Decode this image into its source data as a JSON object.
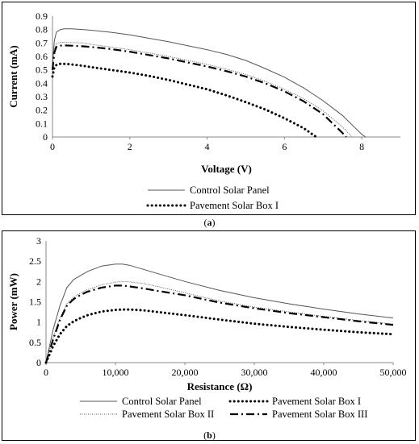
{
  "chart_data": [
    {
      "type": "line",
      "caption": "a",
      "xlabel": "Voltage (V)",
      "ylabel": "Current (mA)",
      "xlim": [
        0,
        9
      ],
      "ylim": [
        0,
        0.9
      ],
      "xticks": [
        "0",
        "2",
        "4",
        "6",
        "8"
      ],
      "yticks": [
        "0",
        "0.1",
        "0.2",
        "0.3",
        "0.4",
        "0.5",
        "0.6",
        "0.7",
        "0.8",
        "0.9"
      ],
      "grid": false,
      "legend_position": "bottom",
      "series": [
        {
          "name": "Control Solar Panel",
          "style": "solid-thin",
          "x": [
            0,
            0.05,
            0.1,
            0.2,
            0.3,
            0.5,
            0.8,
            1,
            1.5,
            2,
            2.5,
            3,
            3.5,
            4,
            4.5,
            5,
            5.5,
            6,
            6.5,
            7,
            7.5,
            8,
            8.1
          ],
          "y": [
            0.55,
            0.72,
            0.78,
            0.8,
            0.805,
            0.806,
            0.8,
            0.795,
            0.78,
            0.76,
            0.735,
            0.71,
            0.68,
            0.65,
            0.615,
            0.57,
            0.51,
            0.445,
            0.365,
            0.27,
            0.16,
            0.02,
            0
          ]
        },
        {
          "name": "Pavement Solar Box I",
          "style": "dotted-thick",
          "x": [
            0,
            0.05,
            0.1,
            0.2,
            0.3,
            0.5,
            0.8,
            1,
            1.5,
            2,
            2.5,
            3,
            3.5,
            4,
            4.5,
            5,
            5.5,
            6,
            6.5,
            6.8,
            6.85
          ],
          "y": [
            0.45,
            0.52,
            0.535,
            0.545,
            0.545,
            0.54,
            0.53,
            0.52,
            0.5,
            0.48,
            0.455,
            0.425,
            0.39,
            0.355,
            0.31,
            0.26,
            0.205,
            0.14,
            0.065,
            0.005,
            0
          ]
        },
        {
          "name": "Pavement Solar Box II",
          "style": "dotted-thin",
          "x": [
            0,
            0.05,
            0.1,
            0.2,
            0.3,
            0.5,
            0.8,
            1,
            1.5,
            2,
            2.5,
            3,
            3.5,
            4,
            4.5,
            5,
            5.5,
            6,
            6.5,
            7,
            7.5,
            7.75
          ],
          "y": [
            0.52,
            0.66,
            0.695,
            0.705,
            0.705,
            0.703,
            0.7,
            0.69,
            0.67,
            0.65,
            0.625,
            0.6,
            0.57,
            0.54,
            0.505,
            0.465,
            0.415,
            0.355,
            0.285,
            0.195,
            0.075,
            0
          ]
        },
        {
          "name": "Pavement Solar Box III",
          "style": "dashdot-thick",
          "x": [
            0,
            0.05,
            0.1,
            0.2,
            0.3,
            0.5,
            0.8,
            1,
            1.5,
            2,
            2.5,
            3,
            3.5,
            4,
            4.5,
            5,
            5.5,
            6,
            6.5,
            7,
            7.5,
            7.6
          ],
          "y": [
            0.5,
            0.63,
            0.67,
            0.68,
            0.682,
            0.68,
            0.675,
            0.67,
            0.655,
            0.635,
            0.61,
            0.585,
            0.555,
            0.525,
            0.49,
            0.45,
            0.4,
            0.34,
            0.265,
            0.17,
            0.03,
            0
          ]
        }
      ],
      "legend_entries": [
        "Control Solar Panel",
        "Pavement Solar Box I"
      ]
    },
    {
      "type": "line",
      "caption": "b",
      "xlabel": "Resistance (Ω)",
      "ylabel": "Power (mW)",
      "xlim": [
        0,
        50000
      ],
      "ylim": [
        0,
        3
      ],
      "xticks": [
        "0",
        "10,000",
        "20,000",
        "30,000",
        "40,000",
        "50,000"
      ],
      "yticks": [
        "0",
        "0.5",
        "1",
        "1.5",
        "2",
        "2.5",
        "3"
      ],
      "grid": false,
      "legend_position": "bottom",
      "series": [
        {
          "name": "Control Solar Panel",
          "style": "solid-thin",
          "x": [
            0,
            500,
            1000,
            2000,
            3000,
            4000,
            5000,
            6000,
            8000,
            10000,
            11000,
            12000,
            14000,
            16000,
            20000,
            25000,
            30000,
            35000,
            40000,
            45000,
            50000
          ],
          "y": [
            0,
            0.4,
            0.8,
            1.4,
            1.85,
            2.05,
            2.15,
            2.25,
            2.38,
            2.43,
            2.43,
            2.4,
            2.3,
            2.2,
            2.0,
            1.78,
            1.6,
            1.45,
            1.32,
            1.2,
            1.1
          ]
        },
        {
          "name": "Pavement Solar Box I",
          "style": "dotted-thick",
          "x": [
            0,
            500,
            1000,
            2000,
            3000,
            4000,
            5000,
            6000,
            8000,
            10000,
            11000,
            12000,
            14000,
            16000,
            20000,
            25000,
            30000,
            35000,
            40000,
            45000,
            50000
          ],
          "y": [
            0,
            0.2,
            0.4,
            0.7,
            0.9,
            1.02,
            1.1,
            1.17,
            1.26,
            1.3,
            1.31,
            1.31,
            1.29,
            1.25,
            1.17,
            1.06,
            0.96,
            0.88,
            0.81,
            0.75,
            0.7
          ]
        },
        {
          "name": "Pavement Solar Box II",
          "style": "dotted-thin",
          "x": [
            0,
            500,
            1000,
            2000,
            3000,
            4000,
            5000,
            6000,
            8000,
            10000,
            11000,
            12000,
            14000,
            16000,
            20000,
            25000,
            30000,
            35000,
            40000,
            45000,
            50000
          ],
          "y": [
            0,
            0.3,
            0.6,
            1.1,
            1.45,
            1.62,
            1.72,
            1.8,
            1.92,
            1.98,
            2.0,
            1.99,
            1.95,
            1.88,
            1.72,
            1.52,
            1.37,
            1.25,
            1.14,
            1.04,
            0.95
          ]
        },
        {
          "name": "Pavement Solar Box III",
          "style": "dashdot-thick",
          "x": [
            0,
            500,
            1000,
            2000,
            3000,
            4000,
            5000,
            6000,
            8000,
            10000,
            11000,
            12000,
            14000,
            16000,
            20000,
            25000,
            30000,
            35000,
            40000,
            45000,
            50000
          ],
          "y": [
            0,
            0.28,
            0.56,
            1.05,
            1.4,
            1.57,
            1.67,
            1.75,
            1.85,
            1.9,
            1.9,
            1.88,
            1.83,
            1.77,
            1.66,
            1.48,
            1.34,
            1.22,
            1.12,
            1.02,
            0.93
          ]
        }
      ],
      "legend_entries": [
        "Control Solar Panel",
        "Pavement Solar Box I",
        "Pavement Solar Box II",
        "Pavement Solar Box III"
      ]
    }
  ],
  "captions": {
    "a": "a",
    "b": "b"
  }
}
